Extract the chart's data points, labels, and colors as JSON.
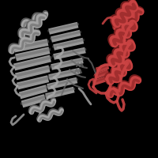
{
  "background_color": "#000000",
  "gray": "#a8a8a8",
  "gray_dark": "#686868",
  "gray_light": "#c8c8c8",
  "red": "#cc4444",
  "red_dark": "#882222",
  "red_light": "#dd7766",
  "figsize": [
    2.0,
    2.0
  ],
  "dpi": 100
}
